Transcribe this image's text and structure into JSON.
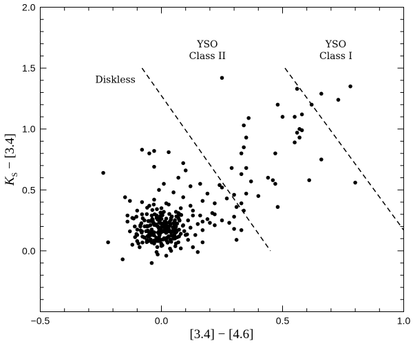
{
  "chart_data": {
    "type": "scatter",
    "title": "",
    "xlabel": "[3.4] − [4.6]",
    "ylabel_main": "K",
    "ylabel_sub": "S",
    "ylabel_rest": " − [3.4]",
    "xlim": [
      -0.5,
      1.0
    ],
    "ylim": [
      -0.5,
      2.0
    ],
    "x_ticks": [
      -0.5,
      0.0,
      0.5,
      1.0
    ],
    "x_tick_labels": [
      "−0.5",
      "0.0",
      "0.5",
      "1.0"
    ],
    "y_ticks": [
      0.0,
      0.5,
      1.0,
      1.5,
      2.0
    ],
    "y_tick_labels": [
      "0.0",
      "0.5",
      "1.0",
      "1.5",
      "2.0"
    ],
    "x_minor_step": 0.1,
    "y_minor_step": 0.1,
    "grid": false,
    "legend": "none",
    "boundary_lines": [
      {
        "x": [
          -0.08,
          0.45
        ],
        "y": [
          1.5,
          0.0
        ],
        "style": "dashed"
      },
      {
        "x": [
          0.51,
          1.0
        ],
        "y": [
          1.5,
          0.17
        ],
        "style": "dashed"
      }
    ],
    "annotations": [
      {
        "lines": [
          "Diskless"
        ],
        "x": -0.19,
        "y": 1.38
      },
      {
        "lines": [
          "YSO",
          "Class II"
        ],
        "x": 0.19,
        "y": 1.67
      },
      {
        "lines": [
          "YSO",
          "Class I"
        ],
        "x": 0.72,
        "y": 1.67
      }
    ],
    "points": [
      [
        0.25,
        1.42
      ],
      [
        0.78,
        1.35
      ],
      [
        0.56,
        1.33
      ],
      [
        0.66,
        1.29
      ],
      [
        0.73,
        1.24
      ],
      [
        0.48,
        1.2
      ],
      [
        0.62,
        1.2
      ],
      [
        0.58,
        1.12
      ],
      [
        0.55,
        1.1
      ],
      [
        0.36,
        1.09
      ],
      [
        0.5,
        1.1
      ],
      [
        0.34,
        1.03
      ],
      [
        0.57,
        1.0
      ],
      [
        0.58,
        0.99
      ],
      [
        0.56,
        0.97
      ],
      [
        0.57,
        0.93
      ],
      [
        0.35,
        0.93
      ],
      [
        0.55,
        0.89
      ],
      [
        0.34,
        0.85
      ],
      [
        -0.08,
        0.83
      ],
      [
        -0.05,
        0.8
      ],
      [
        -0.03,
        0.82
      ],
      [
        0.03,
        0.81
      ],
      [
        0.47,
        0.8
      ],
      [
        0.33,
        0.8
      ],
      [
        0.66,
        0.75
      ],
      [
        0.09,
        0.72
      ],
      [
        -0.03,
        0.69
      ],
      [
        0.35,
        0.68
      ],
      [
        0.29,
        0.68
      ],
      [
        0.1,
        0.66
      ],
      [
        -0.24,
        0.64
      ],
      [
        0.33,
        0.63
      ],
      [
        0.07,
        0.6
      ],
      [
        0.44,
        0.6
      ],
      [
        0.46,
        0.58
      ],
      [
        0.37,
        0.57
      ],
      [
        0.61,
        0.58
      ],
      [
        0.47,
        0.55
      ],
      [
        0.8,
        0.56
      ],
      [
        0.16,
        0.55
      ],
      [
        0.24,
        0.54
      ],
      [
        0.01,
        0.55
      ],
      [
        0.12,
        0.53
      ],
      [
        0.25,
        0.52
      ],
      [
        -0.01,
        0.5
      ],
      [
        0.05,
        0.48
      ],
      [
        0.19,
        0.47
      ],
      [
        0.3,
        0.46
      ],
      [
        0.35,
        0.47
      ],
      [
        0.4,
        0.45
      ],
      [
        0.27,
        0.43
      ],
      [
        0.09,
        0.44
      ],
      [
        0.17,
        0.41
      ],
      [
        0.22,
        0.39
      ],
      [
        -0.15,
        0.44
      ],
      [
        -0.13,
        0.41
      ],
      [
        0.33,
        0.39
      ],
      [
        0.03,
        0.38
      ],
      [
        0.31,
        0.36
      ],
      [
        0.48,
        0.36
      ],
      [
        0.08,
        0.35
      ],
      [
        0.12,
        0.37
      ],
      [
        0.13,
        0.33
      ],
      [
        0.21,
        0.31
      ],
      [
        0.34,
        0.33
      ],
      [
        0.06,
        0.32
      ],
      [
        0.16,
        0.29
      ],
      [
        0.22,
        0.3
      ],
      [
        0.07,
        0.27
      ],
      [
        0.28,
        0.23
      ],
      [
        -0.14,
        0.29
      ],
      [
        -0.1,
        0.33
      ],
      [
        0.3,
        0.28
      ],
      [
        0.25,
        0.25
      ],
      [
        0.2,
        0.23
      ],
      [
        0.22,
        0.21
      ],
      [
        0.17,
        0.24
      ],
      [
        0.19,
        0.26
      ],
      [
        0.15,
        0.22
      ],
      [
        0.12,
        0.19
      ],
      [
        0.17,
        0.17
      ],
      [
        0.33,
        0.17
      ],
      [
        0.3,
        0.18
      ],
      [
        0.14,
        0.13
      ],
      [
        0.31,
        0.09
      ],
      [
        0.1,
        0.13
      ],
      [
        0.17,
        0.07
      ],
      [
        0.11,
        0.09
      ],
      [
        0.13,
        0.03
      ],
      [
        0.15,
        -0.01
      ],
      [
        0.06,
        0.06
      ],
      [
        -0.22,
        0.07
      ],
      [
        -0.16,
        -0.07
      ],
      [
        -0.04,
        -0.1
      ],
      [
        0.02,
        -0.04
      ],
      [
        0.04,
        0.0
      ],
      [
        -0.02,
        -0.01
      ],
      [
        0.08,
        0.02
      ],
      [
        0.07,
        0.07
      ],
      [
        -0.12,
        0.05
      ],
      [
        -0.09,
        0.03
      ],
      [
        -0.1,
        0.13
      ],
      [
        -0.13,
        0.16
      ],
      [
        -0.14,
        0.24
      ],
      [
        -0.12,
        0.27
      ],
      [
        -0.08,
        0.3
      ],
      [
        -0.04,
        0.29
      ],
      [
        -0.07,
        0.25
      ],
      [
        -0.06,
        0.2
      ],
      [
        -0.02,
        0.27
      ],
      [
        0.01,
        0.32
      ],
      [
        0.04,
        0.27
      ],
      [
        0.02,
        0.22
      ],
      [
        0.06,
        0.2
      ],
      [
        0.04,
        0.15
      ],
      [
        0.01,
        0.16
      ],
      [
        -0.01,
        0.11
      ],
      [
        -0.04,
        0.13
      ],
      [
        -0.06,
        0.09
      ],
      [
        -0.08,
        0.16
      ],
      [
        -0.03,
        0.06
      ],
      [
        0.0,
        0.04
      ],
      [
        0.02,
        0.09
      ],
      [
        0.05,
        0.1
      ],
      [
        0.08,
        0.14
      ],
      [
        0.09,
        0.21
      ],
      [
        0.07,
        0.31
      ],
      [
        0.02,
        0.39
      ],
      [
        -0.05,
        0.37
      ],
      [
        -0.08,
        0.4
      ],
      [
        -0.11,
        0.2
      ],
      [
        -0.1,
        0.08
      ],
      [
        0.11,
        0.25
      ],
      [
        0.13,
        0.29
      ],
      [
        -0.03,
        0.42
      ],
      [
        0.0,
        0.35
      ],
      [
        -0.05,
        0.14
      ],
      [
        -0.07,
        0.11
      ],
      [
        0.03,
        0.12
      ]
    ],
    "dense_cluster": {
      "center": [
        0.0,
        0.18
      ],
      "sx": 0.05,
      "sy": 0.08,
      "count": 170
    }
  }
}
